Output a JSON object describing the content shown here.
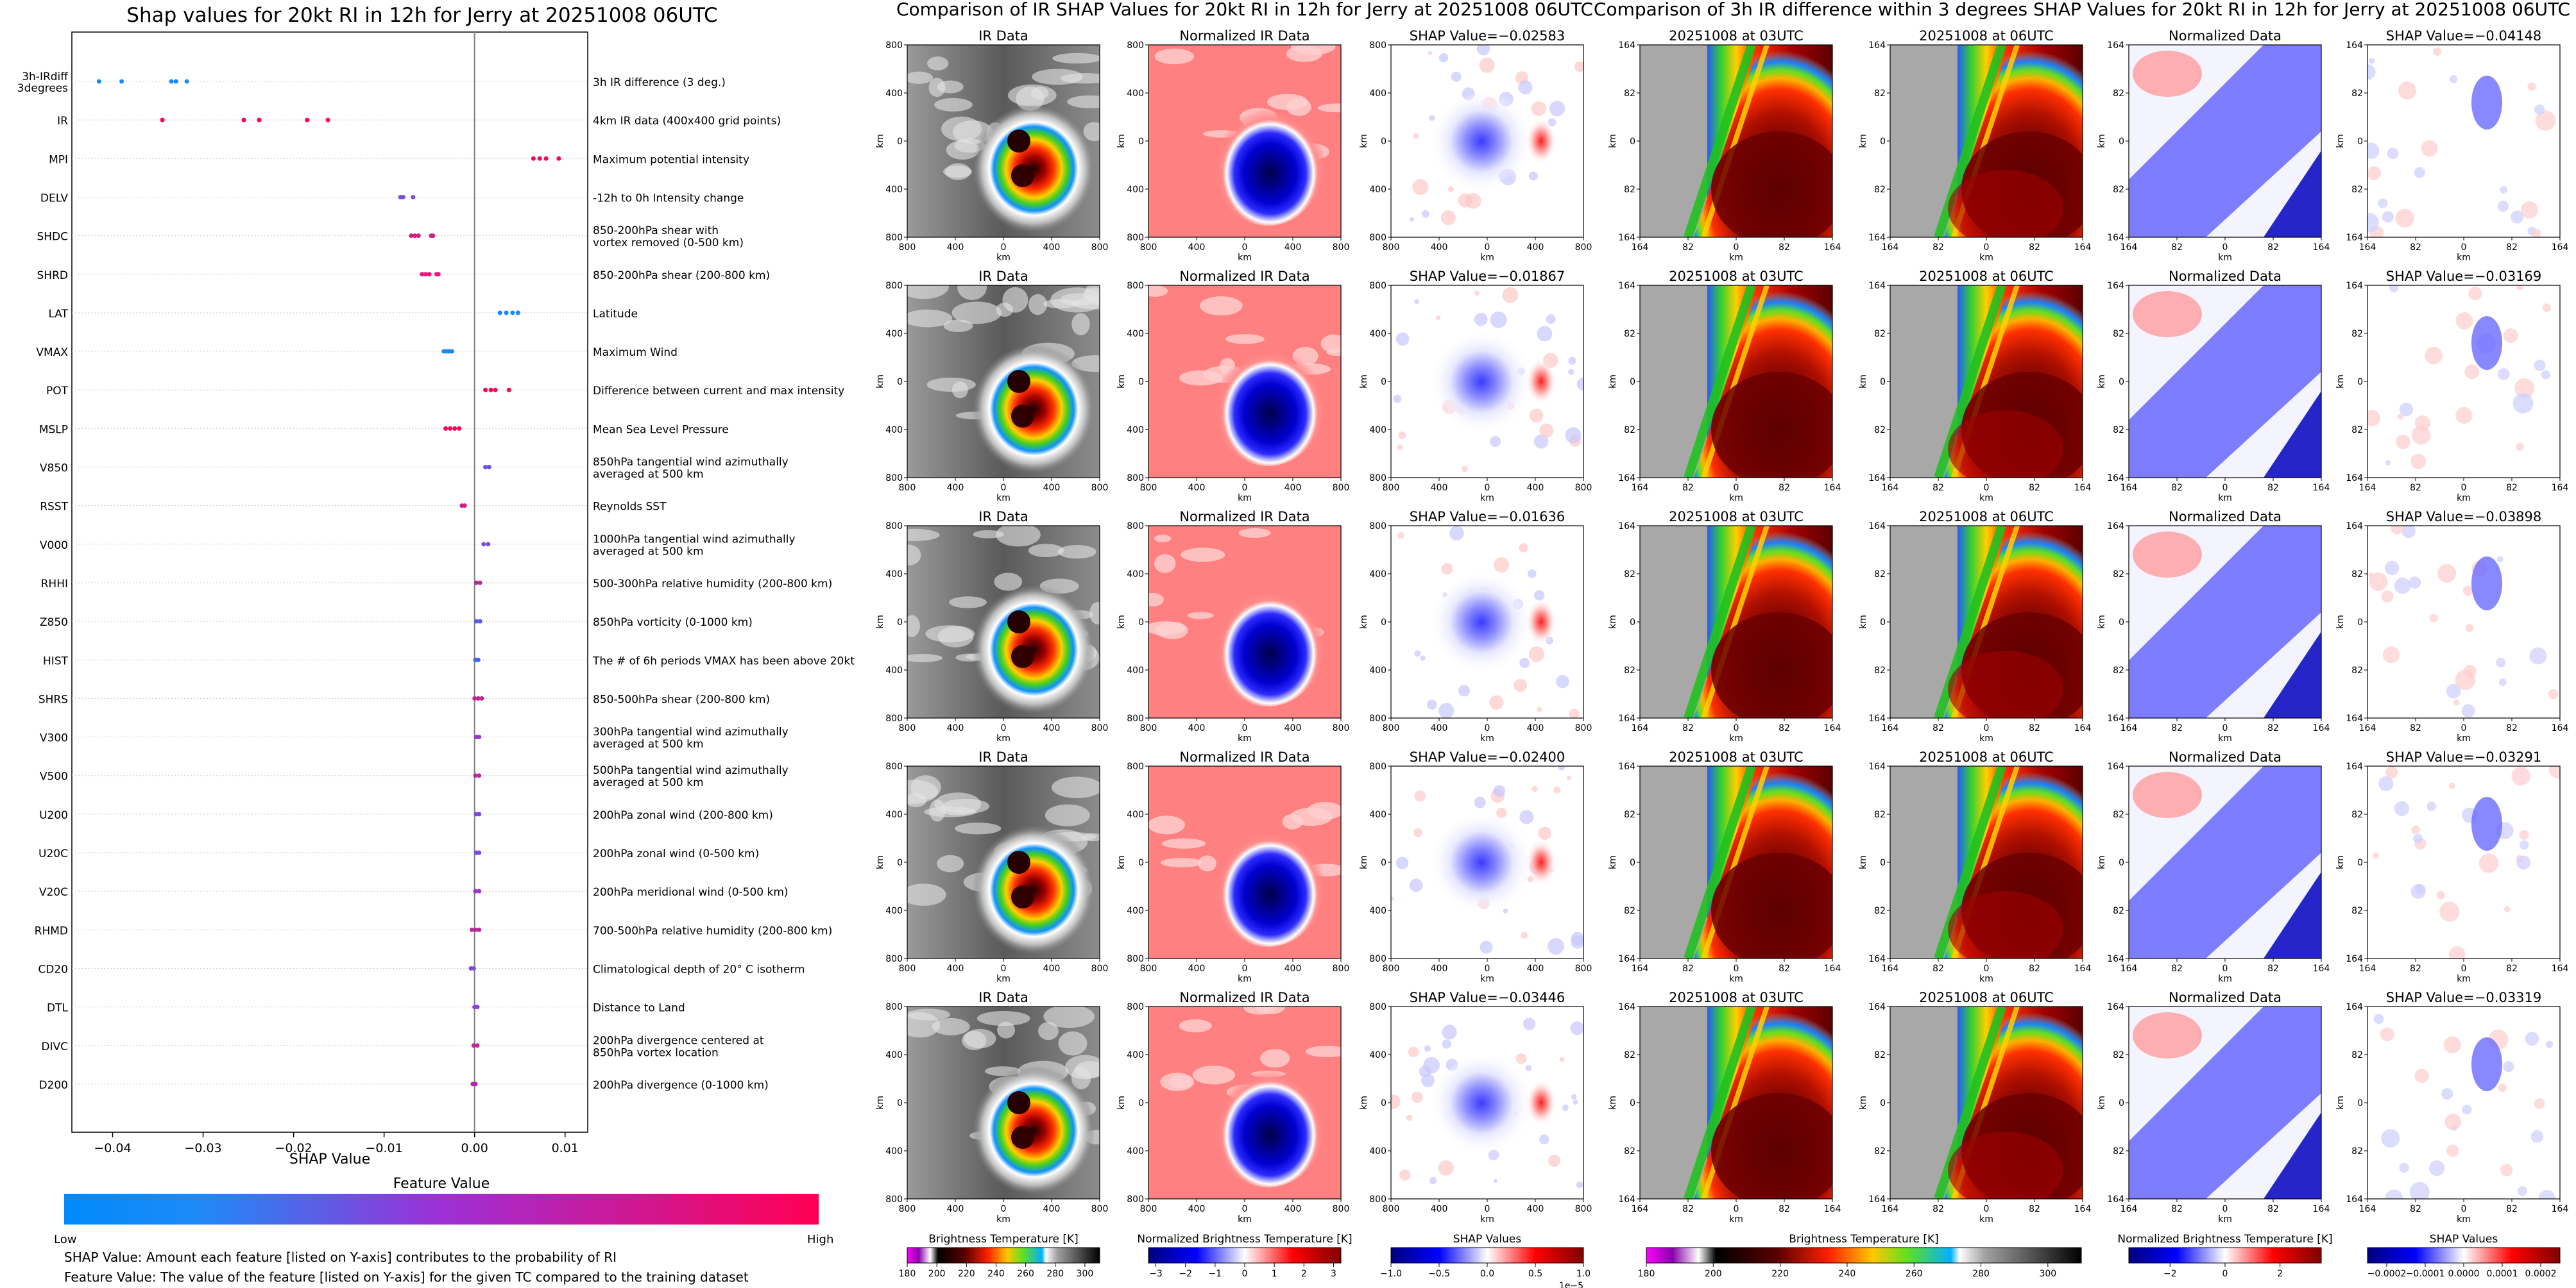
{
  "chart_data": [
    {
      "type": "scatter",
      "title": "Shap values for 20kt RI in 12h for Jerry at 20251008 06UTC",
      "xlabel": "SHAP Value",
      "xlim": [
        -0.0445,
        0.0125
      ],
      "xticks": [
        -0.04,
        -0.03,
        -0.02,
        -0.01,
        0.0,
        0.01
      ],
      "xtick_labels": [
        "−0.04",
        "−0.03",
        "−0.02",
        "−0.01",
        "0.00",
        "0.01"
      ],
      "colorbar": {
        "title": "Feature Value",
        "low_label": "Low",
        "high_label": "High",
        "low_color": "#008afb",
        "mid_color": "#9d2fd6",
        "high_color": "#ff0052"
      },
      "notes": [
        "SHAP Value: Amount each feature [listed on Y-axis] contributes to the probability of RI",
        "Feature Value: The value of the feature [listed on Y-axis] for the given TC compared to the training dataset"
      ],
      "features": [
        {
          "code": "3h-IRdiff\n3degrees",
          "desc": "3h IR difference (3 deg.)",
          "points": [
            -0.0415,
            -0.039,
            -0.0335,
            -0.033,
            -0.0318
          ],
          "colors": [
            "#1a88f8",
            "#1a88f8",
            "#1a88f8",
            "#1a88f8",
            "#1a88f8"
          ]
        },
        {
          "code": "IR",
          "desc": "4km IR data (400x400 grid points)",
          "points": [
            -0.0345,
            -0.0255,
            -0.0238,
            -0.0185,
            -0.0162
          ],
          "colors": [
            "#ff0052",
            "#ff0052",
            "#ff0052",
            "#ff0052",
            "#ff0052"
          ]
        },
        {
          "code": "MPI",
          "desc": "Maximum potential intensity",
          "points": [
            0.0065,
            0.0072,
            0.0079,
            0.0093
          ],
          "colors": [
            "#ff0052",
            "#ff0052",
            "#ff0052",
            "#ff0052"
          ]
        },
        {
          "code": "DELV",
          "desc": "-12h to 0h Intensity change",
          "points": [
            -0.0082,
            -0.0079,
            -0.0068
          ],
          "colors": [
            "#7b4be0",
            "#7b4be0",
            "#7b4be0"
          ]
        },
        {
          "code": "SHDC",
          "desc": "850-200hPa shear with\nvortex removed (0-500 km)",
          "points": [
            -0.007,
            -0.0066,
            -0.0062,
            -0.0048,
            -0.0046
          ],
          "colors": [
            "#d11f82",
            "#d11f82",
            "#d11f82",
            "#d11f82",
            "#d11f82"
          ]
        },
        {
          "code": "SHRD",
          "desc": "850-200hPa shear (200-800 km)",
          "points": [
            -0.0058,
            -0.0054,
            -0.005,
            -0.0042,
            -0.004
          ],
          "colors": [
            "#e8177b",
            "#e8177b",
            "#e8177b",
            "#e8177b",
            "#e8177b"
          ]
        },
        {
          "code": "LAT",
          "desc": "Latitude",
          "points": [
            0.0028,
            0.0035,
            0.0042,
            0.0048
          ],
          "colors": [
            "#1a88f8",
            "#1a88f8",
            "#1a88f8",
            "#1a88f8"
          ]
        },
        {
          "code": "VMAX",
          "desc": "Maximum Wind",
          "points": [
            -0.0034,
            -0.0031,
            -0.0028,
            -0.0025
          ],
          "colors": [
            "#1a88f8",
            "#1a88f8",
            "#1a88f8",
            "#1a88f8"
          ]
        },
        {
          "code": "POT",
          "desc": "Difference between current and max intensity",
          "points": [
            0.0012,
            0.0018,
            0.0023,
            0.0038
          ],
          "colors": [
            "#ff0052",
            "#ff0052",
            "#ff0052",
            "#ff0052"
          ]
        },
        {
          "code": "MSLP",
          "desc": "Mean Sea Level Pressure",
          "points": [
            -0.0032,
            -0.0027,
            -0.0022,
            -0.0017
          ],
          "colors": [
            "#ff0052",
            "#ff0052",
            "#ff0052",
            "#ff0052"
          ]
        },
        {
          "code": "V850",
          "desc": "850hPa tangential wind azimuthally\naveraged at 500 km",
          "points": [
            0.0012,
            0.0016
          ],
          "colors": [
            "#6a50e8",
            "#6a50e8"
          ]
        },
        {
          "code": "RSST",
          "desc": "Reynolds SST",
          "points": [
            -0.0014,
            -0.0011
          ],
          "colors": [
            "#c8228d",
            "#c8228d"
          ]
        },
        {
          "code": "V000",
          "desc": "1000hPa tangential wind azimuthally\naveraged at 500 km",
          "points": [
            0.001,
            0.0015
          ],
          "colors": [
            "#7c4ae0",
            "#7c4ae0"
          ]
        },
        {
          "code": "RHHI",
          "desc": "500-300hPa relative humidity (200-800 km)",
          "points": [
            0.0002,
            0.0006
          ],
          "colors": [
            "#b02aa8",
            "#b02aa8"
          ]
        },
        {
          "code": "Z850",
          "desc": "850hPa vorticity (0-1000 km)",
          "points": [
            0.0002,
            0.0006
          ],
          "colors": [
            "#5a5aee",
            "#5a5aee"
          ]
        },
        {
          "code": "HIST",
          "desc": "The # of 6h periods VMAX has been above 20kt",
          "points": [
            0.0001,
            0.0004
          ],
          "colors": [
            "#4066f0",
            "#4066f0"
          ]
        },
        {
          "code": "SHRS",
          "desc": "850-500hPa shear (200-800 km)",
          "points": [
            0.0,
            0.0004,
            0.0008
          ],
          "colors": [
            "#c02590",
            "#c02590",
            "#c02590"
          ]
        },
        {
          "code": "V300",
          "desc": "300hPa tangential wind azimuthally\naveraged at 500 km",
          "points": [
            0.0002,
            0.0005
          ],
          "colors": [
            "#9d33c8",
            "#9d33c8"
          ]
        },
        {
          "code": "V500",
          "desc": "500hPa tangential wind azimuthally\naveraged at 500 km",
          "points": [
            0.0001,
            0.0005
          ],
          "colors": [
            "#b52aa0",
            "#b52aa0"
          ]
        },
        {
          "code": "U200",
          "desc": "200hPa zonal wind (200-800 km)",
          "points": [
            0.0002,
            0.0005
          ],
          "colors": [
            "#7d48dc",
            "#7d48dc"
          ]
        },
        {
          "code": "U20C",
          "desc": "200hPa zonal wind (0-500 km)",
          "points": [
            0.0002,
            0.0005
          ],
          "colors": [
            "#7d48dc",
            "#7d48dc"
          ]
        },
        {
          "code": "V20C",
          "desc": "200hPa meridional wind (0-500 km)",
          "points": [
            0.0001,
            0.0005
          ],
          "colors": [
            "#9d33c8",
            "#9d33c8"
          ]
        },
        {
          "code": "RHMD",
          "desc": "700-500hPa relative humidity (200-800 km)",
          "points": [
            -0.0003,
            0.0001,
            0.0005
          ],
          "colors": [
            "#b82aa0",
            "#b82aa0",
            "#b82aa0"
          ]
        },
        {
          "code": "CD20",
          "desc": "Climatological depth of 20° C isotherm",
          "points": [
            -0.0004,
            -0.0001
          ],
          "colors": [
            "#7c4ae0",
            "#7c4ae0"
          ]
        },
        {
          "code": "DTL",
          "desc": "Distance to Land",
          "points": [
            0.0,
            0.0003
          ],
          "colors": [
            "#8a40d8",
            "#8a40d8"
          ]
        },
        {
          "code": "DIVC",
          "desc": "200hPa divergence centered at\n850hPa vortex location",
          "points": [
            -0.0001,
            0.0003
          ],
          "colors": [
            "#c02590",
            "#c02590"
          ]
        },
        {
          "code": "D200",
          "desc": "200hPa divergence (0-1000 km)",
          "points": [
            -0.0002,
            0.0001
          ],
          "colors": [
            "#b02aa8",
            "#b02aa8"
          ]
        }
      ]
    },
    {
      "type": "image-grid",
      "title": "Comparison of IR SHAP Values for 20kt RI in 12h for Jerry at 20251008 06UTC",
      "columns": [
        {
          "kind": "ir",
          "title": "IR Data"
        },
        {
          "kind": "norm",
          "title": "Normalized IR Data"
        },
        {
          "kind": "shap",
          "title": "SHAP Value"
        }
      ],
      "shap_values": [
        "−0.02583",
        "−0.01867",
        "−0.01636",
        "−0.02400",
        "−0.03446"
      ],
      "xlabel": "km",
      "ylabel": "km",
      "xtick_labels": [
        "800",
        "400",
        "0",
        "400",
        "800"
      ],
      "ytick_labels": [
        "800",
        "400",
        "0",
        "400",
        "800"
      ],
      "colorbars": [
        {
          "kind": "bt",
          "label": "Brightness Temperature [K]",
          "ticks": [
            "180",
            "200",
            "220",
            "240",
            "260",
            "280",
            "300"
          ],
          "range": [
            180,
            310
          ]
        },
        {
          "kind": "div",
          "label": "Normalized Brightness Temperature [K]",
          "ticks": [
            "−3",
            "−2",
            "−1",
            "0",
            "1",
            "2",
            "3"
          ],
          "range": [
            -3.25,
            3.25
          ]
        },
        {
          "kind": "div",
          "label": "SHAP Values",
          "ticks": [
            "−1.0",
            "−0.5",
            "0.0",
            "0.5",
            "1.0"
          ],
          "range": [
            -1.0,
            1.0
          ],
          "offset": "1e−5"
        }
      ]
    },
    {
      "type": "image-grid",
      "title": "Comparison of 3h IR difference within 3 degrees SHAP Values for 20kt RI in 12h for Jerry at 20251008 06UTC",
      "columns": [
        {
          "kind": "zoom1",
          "title": "20251008 at 03UTC"
        },
        {
          "kind": "zoom2",
          "title": "20251008 at 06UTC"
        },
        {
          "kind": "znorm",
          "title": "Normalized Data"
        },
        {
          "kind": "zshap",
          "title": "SHAP Value"
        }
      ],
      "shap_values": [
        "−0.04148",
        "−0.03169",
        "−0.03898",
        "−0.03291",
        "−0.03319"
      ],
      "xlabel": "km",
      "ylabel": "km",
      "xtick_labels": [
        "164",
        "82",
        "0",
        "82",
        "164"
      ],
      "ytick_labels": [
        "164",
        "82",
        "0",
        "82",
        "164"
      ],
      "colorbars": [
        {
          "kind": "bt",
          "label": "Brightness Temperature [K]",
          "ticks": [
            "180",
            "200",
            "220",
            "240",
            "260",
            "280",
            "300"
          ],
          "range": [
            180,
            310
          ]
        },
        {
          "kind": "div",
          "label": "Normalized Brightness Temperature [K]",
          "ticks": [
            "−2",
            "0",
            "2"
          ],
          "range": [
            -3.5,
            3.5
          ]
        },
        {
          "kind": "div",
          "label": "SHAP Values",
          "ticks": [
            "−0.0002",
            "−0.0001",
            "0.0000",
            "0.0001",
            "0.0002"
          ],
          "range": [
            -0.00025,
            0.00025
          ]
        }
      ]
    }
  ]
}
